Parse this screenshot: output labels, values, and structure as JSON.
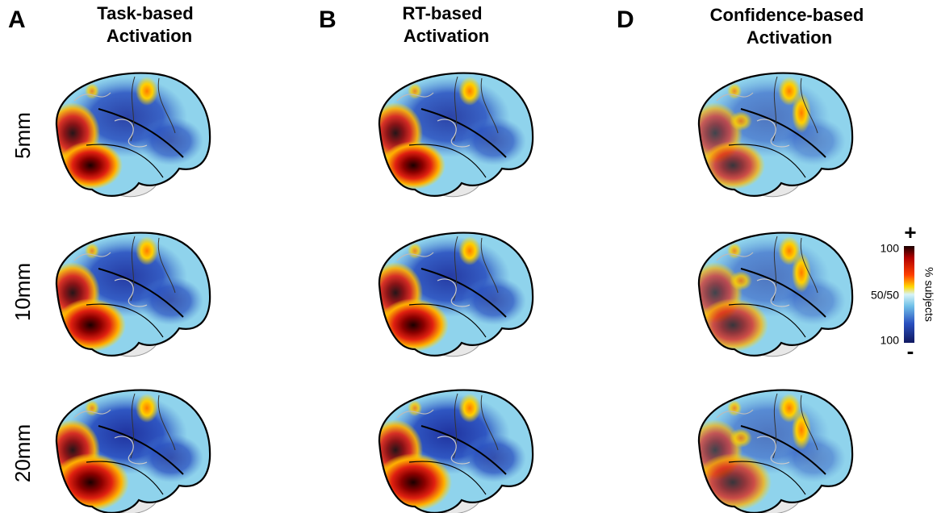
{
  "panels": [
    {
      "letter": "A",
      "title": [
        "Task-based",
        "Activation"
      ]
    },
    {
      "letter": "B",
      "title": [
        "RT-based",
        "Activation"
      ]
    },
    {
      "letter": "D",
      "title": [
        "Confidence-based",
        "Activation"
      ]
    }
  ],
  "rows": [
    "5mm",
    "10mm",
    "20mm"
  ],
  "colorbar": {
    "top": "100",
    "middle": "50/50",
    "bottom": "100",
    "plus": "+",
    "minus": "-",
    "label": "% subjects"
  }
}
